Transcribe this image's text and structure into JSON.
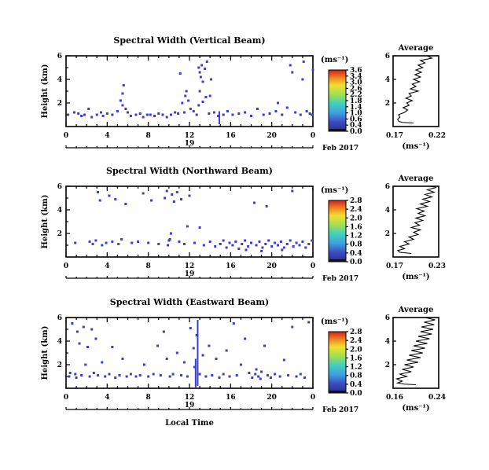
{
  "chart_data": [
    {
      "type": "heatmap",
      "title": "Spectral Width (Vertical Beam)",
      "ylabel": "Height (km)",
      "yticks": [
        "6",
        "4",
        "2"
      ],
      "ylim": [
        0,
        6
      ],
      "xticks": [
        "0",
        "4",
        "8",
        "12",
        "16",
        "20",
        "0"
      ],
      "xlim": [
        0,
        24
      ],
      "date_label": "19",
      "month_label": "Feb 2017",
      "colorbar": {
        "unit": "(ms⁻¹)",
        "ticks": [
          "3.6",
          "3.4",
          "3.0",
          "2.6",
          "2.2",
          "1.8",
          "1.4",
          "1.0",
          "0.6",
          "0.4",
          "0.0"
        ]
      },
      "average": {
        "title": "Average",
        "xlabel": "(ms⁻¹)",
        "xticks": [
          "0.17",
          "0.22"
        ],
        "yticks": [
          "6",
          "4",
          "2"
        ]
      },
      "points": [
        [
          0.2,
          1.0
        ],
        [
          0.8,
          1.2
        ],
        [
          1.2,
          1.1
        ],
        [
          1.5,
          0.9
        ],
        [
          1.8,
          1.0
        ],
        [
          2.2,
          1.5
        ],
        [
          2.5,
          0.8
        ],
        [
          3.0,
          1.0
        ],
        [
          3.4,
          1.2
        ],
        [
          3.6,
          0.9
        ],
        [
          4.0,
          1.1
        ],
        [
          4.5,
          1.0
        ],
        [
          5.0,
          1.3
        ],
        [
          5.3,
          2.2
        ],
        [
          5.5,
          1.8
        ],
        [
          5.6,
          3.5
        ],
        [
          5.8,
          1.5
        ],
        [
          6.0,
          1.2
        ],
        [
          6.3,
          0.9
        ],
        [
          6.8,
          1.0
        ],
        [
          7.2,
          1.1
        ],
        [
          7.5,
          0.8
        ],
        [
          7.9,
          1.0
        ],
        [
          8.2,
          1.0
        ],
        [
          8.6,
          0.9
        ],
        [
          9.0,
          1.1
        ],
        [
          9.4,
          1.0
        ],
        [
          9.8,
          0.8
        ],
        [
          10.2,
          1.0
        ],
        [
          10.6,
          1.2
        ],
        [
          10.9,
          1.1
        ],
        [
          11.1,
          4.5
        ],
        [
          11.3,
          2.0
        ],
        [
          11.5,
          1.2
        ],
        [
          11.7,
          3.0
        ],
        [
          11.9,
          2.2
        ],
        [
          12.1,
          1.5
        ],
        [
          12.4,
          1.3
        ],
        [
          12.7,
          1.0
        ],
        [
          12.9,
          5.0
        ],
        [
          13.0,
          4.6
        ],
        [
          13.1,
          4.2
        ],
        [
          13.2,
          5.2
        ],
        [
          13.3,
          3.8
        ],
        [
          13.5,
          4.9
        ],
        [
          13.6,
          2.5
        ],
        [
          13.7,
          5.5
        ],
        [
          13.9,
          1.1
        ],
        [
          14.1,
          4.0
        ],
        [
          14.4,
          1.2
        ],
        [
          14.8,
          0.9
        ],
        [
          15.3,
          1.0
        ],
        [
          15.7,
          1.3
        ],
        [
          16.2,
          1.0
        ],
        [
          16.8,
          1.1
        ],
        [
          17.4,
          1.2
        ],
        [
          18.0,
          0.9
        ],
        [
          18.6,
          1.5
        ],
        [
          19.2,
          1.0
        ],
        [
          19.8,
          1.1
        ],
        [
          20.4,
          1.3
        ],
        [
          20.6,
          2.0
        ],
        [
          21.0,
          1.0
        ],
        [
          21.5,
          1.6
        ],
        [
          21.8,
          5.2
        ],
        [
          22.0,
          4.6
        ],
        [
          22.3,
          1.2
        ],
        [
          22.8,
          1.0
        ],
        [
          23.0,
          4.0
        ],
        [
          23.1,
          5.5
        ],
        [
          23.4,
          1.3
        ],
        [
          23.7,
          1.1
        ],
        [
          23.9,
          1.0
        ],
        [
          24.0,
          4.8
        ],
        [
          13.0,
          3.0
        ],
        [
          11.6,
          2.6
        ],
        [
          5.5,
          2.8
        ],
        [
          12.9,
          1.8
        ],
        [
          13.3,
          2.1
        ],
        [
          14.0,
          2.6
        ]
      ],
      "stripes": [
        [
          14.9,
          0.2,
          1.3
        ]
      ],
      "profile": [
        [
          0.45,
          0.3
        ],
        [
          0.2,
          0.35
        ],
        [
          0.12,
          0.45
        ],
        [
          0.1,
          0.6
        ],
        [
          0.15,
          0.8
        ],
        [
          0.12,
          1.0
        ],
        [
          0.25,
          1.2
        ],
        [
          0.32,
          1.4
        ],
        [
          0.22,
          1.6
        ],
        [
          0.35,
          1.8
        ],
        [
          0.3,
          2.0
        ],
        [
          0.42,
          2.2
        ],
        [
          0.28,
          2.4
        ],
        [
          0.4,
          2.6
        ],
        [
          0.35,
          2.8
        ],
        [
          0.55,
          3.0
        ],
        [
          0.38,
          3.2
        ],
        [
          0.5,
          3.4
        ],
        [
          0.42,
          3.6
        ],
        [
          0.58,
          3.8
        ],
        [
          0.45,
          4.0
        ],
        [
          0.6,
          4.2
        ],
        [
          0.48,
          4.4
        ],
        [
          0.62,
          4.6
        ],
        [
          0.5,
          4.8
        ],
        [
          0.65,
          5.0
        ],
        [
          0.55,
          5.2
        ],
        [
          0.7,
          5.4
        ],
        [
          0.6,
          5.6
        ],
        [
          0.85,
          5.8
        ],
        [
          0.75,
          6.0
        ]
      ]
    },
    {
      "type": "heatmap",
      "title": "Spectral Width (Northward Beam)",
      "ylabel": "Height (km)",
      "yticks": [
        "6",
        "4",
        "2"
      ],
      "ylim": [
        0,
        6
      ],
      "xticks": [
        "0",
        "4",
        "8",
        "12",
        "16",
        "20",
        "0"
      ],
      "xlim": [
        0,
        24
      ],
      "date_label": "19",
      "month_label": "Feb 2017",
      "colorbar": {
        "unit": "(ms⁻¹)",
        "ticks": [
          "2.8",
          "2.4",
          "2.0",
          "1.6",
          "1.2",
          "0.8",
          "0.4",
          "0.0"
        ]
      },
      "average": {
        "title": "Average",
        "xlabel": "(ms⁻¹)",
        "xticks": [
          "0.17",
          "0.23"
        ],
        "yticks": [
          "6",
          "4",
          "2"
        ]
      },
      "points": [
        [
          0.9,
          1.2
        ],
        [
          2.3,
          1.3
        ],
        [
          2.6,
          1.1
        ],
        [
          2.9,
          1.4
        ],
        [
          3.1,
          5.5
        ],
        [
          3.3,
          4.8
        ],
        [
          3.5,
          1.0
        ],
        [
          3.9,
          1.2
        ],
        [
          4.2,
          5.2
        ],
        [
          4.5,
          1.3
        ],
        [
          4.8,
          4.9
        ],
        [
          5.1,
          1.1
        ],
        [
          5.4,
          1.5
        ],
        [
          5.8,
          4.5
        ],
        [
          6.4,
          1.2
        ],
        [
          7.0,
          1.3
        ],
        [
          7.5,
          5.4
        ],
        [
          8.0,
          1.2
        ],
        [
          8.3,
          4.8
        ],
        [
          9.0,
          1.1
        ],
        [
          9.6,
          5.0
        ],
        [
          9.8,
          5.6
        ],
        [
          10.0,
          1.4
        ],
        [
          10.2,
          2.0
        ],
        [
          10.3,
          5.3
        ],
        [
          10.5,
          4.7
        ],
        [
          10.8,
          5.5
        ],
        [
          11.0,
          1.3
        ],
        [
          11.2,
          4.9
        ],
        [
          11.5,
          1.1
        ],
        [
          11.8,
          2.6
        ],
        [
          12.0,
          5.2
        ],
        [
          12.5,
          1.2
        ],
        [
          13.0,
          2.5
        ],
        [
          13.4,
          1.0
        ],
        [
          14.0,
          1.3
        ],
        [
          14.5,
          0.9
        ],
        [
          15.0,
          1.1
        ],
        [
          15.3,
          1.4
        ],
        [
          15.6,
          0.8
        ],
        [
          15.9,
          1.2
        ],
        [
          16.2,
          1.0
        ],
        [
          16.5,
          1.3
        ],
        [
          16.8,
          0.7
        ],
        [
          17.1,
          1.1
        ],
        [
          17.4,
          1.4
        ],
        [
          17.7,
          0.9
        ],
        [
          18.0,
          1.2
        ],
        [
          18.3,
          4.6
        ],
        [
          18.5,
          1.0
        ],
        [
          18.8,
          1.3
        ],
        [
          19.1,
          0.8
        ],
        [
          19.4,
          1.1
        ],
        [
          19.7,
          1.4
        ],
        [
          20.0,
          0.9
        ],
        [
          20.3,
          1.2
        ],
        [
          20.6,
          1.0
        ],
        [
          20.9,
          1.3
        ],
        [
          21.2,
          0.8
        ],
        [
          21.5,
          1.1
        ],
        [
          21.8,
          1.4
        ],
        [
          22.1,
          0.9
        ],
        [
          22.4,
          1.2
        ],
        [
          22.7,
          1.0
        ],
        [
          23.0,
          1.3
        ],
        [
          23.3,
          0.8
        ],
        [
          23.6,
          1.1
        ],
        [
          23.9,
          1.4
        ],
        [
          19.5,
          4.3
        ],
        [
          22.0,
          5.6
        ],
        [
          10.1,
          1.5
        ],
        [
          9.9,
          1.0
        ],
        [
          17.5,
          0.6
        ],
        [
          19.0,
          0.5
        ],
        [
          21.0,
          0.6
        ]
      ],
      "stripes": [],
      "profile": [
        [
          0.4,
          0.3
        ],
        [
          0.15,
          0.4
        ],
        [
          0.1,
          0.55
        ],
        [
          0.25,
          0.7
        ],
        [
          0.15,
          0.9
        ],
        [
          0.35,
          1.1
        ],
        [
          0.25,
          1.3
        ],
        [
          0.45,
          1.5
        ],
        [
          0.35,
          1.7
        ],
        [
          0.55,
          1.9
        ],
        [
          0.45,
          2.1
        ],
        [
          0.6,
          2.3
        ],
        [
          0.4,
          2.5
        ],
        [
          0.58,
          2.7
        ],
        [
          0.48,
          2.9
        ],
        [
          0.65,
          3.1
        ],
        [
          0.5,
          3.3
        ],
        [
          0.7,
          3.5
        ],
        [
          0.55,
          3.7
        ],
        [
          0.68,
          3.9
        ],
        [
          0.52,
          4.1
        ],
        [
          0.75,
          4.3
        ],
        [
          0.6,
          4.5
        ],
        [
          0.8,
          4.7
        ],
        [
          0.65,
          4.9
        ],
        [
          0.85,
          5.1
        ],
        [
          0.7,
          5.3
        ],
        [
          0.9,
          5.5
        ],
        [
          0.75,
          5.7
        ],
        [
          0.95,
          5.9
        ],
        [
          0.8,
          6.0
        ]
      ]
    },
    {
      "type": "heatmap",
      "title": "Spectral Width (Eastward Beam)",
      "ylabel": "Height (km)",
      "yticks": [
        "6",
        "4",
        "2"
      ],
      "ylim": [
        0,
        6
      ],
      "xticks": [
        "0",
        "4",
        "8",
        "12",
        "16",
        "20",
        "0"
      ],
      "xlim": [
        0,
        24
      ],
      "date_label": "19",
      "month_label": "Feb 2017",
      "xlabel": "Local Time",
      "colorbar": {
        "unit": "(ms⁻¹)",
        "ticks": [
          "2.8",
          "2.4",
          "2.0",
          "1.6",
          "1.2",
          "0.8",
          "0.4",
          "0.0"
        ]
      },
      "average": {
        "title": "Average",
        "xlabel": "(ms⁻¹)",
        "xticks": [
          "0.16",
          "0.24"
        ],
        "yticks": [
          "6",
          "4",
          "2"
        ]
      },
      "points": [
        [
          0.3,
          1.0
        ],
        [
          0.6,
          5.5
        ],
        [
          0.9,
          1.2
        ],
        [
          1.1,
          4.8
        ],
        [
          1.3,
          3.8
        ],
        [
          1.5,
          1.1
        ],
        [
          1.7,
          5.2
        ],
        [
          1.9,
          2.0
        ],
        [
          2.1,
          3.5
        ],
        [
          2.3,
          1.0
        ],
        [
          2.5,
          5.0
        ],
        [
          2.7,
          1.3
        ],
        [
          2.9,
          4.2
        ],
        [
          3.1,
          1.1
        ],
        [
          3.5,
          2.2
        ],
        [
          3.8,
          1.0
        ],
        [
          4.2,
          1.2
        ],
        [
          4.5,
          3.5
        ],
        [
          4.8,
          0.9
        ],
        [
          5.2,
          1.1
        ],
        [
          5.5,
          2.5
        ],
        [
          5.9,
          1.0
        ],
        [
          6.3,
          1.2
        ],
        [
          6.8,
          1.0
        ],
        [
          7.2,
          1.1
        ],
        [
          7.6,
          2.0
        ],
        [
          8.0,
          1.0
        ],
        [
          8.5,
          1.2
        ],
        [
          8.9,
          3.6
        ],
        [
          9.2,
          1.1
        ],
        [
          9.5,
          4.8
        ],
        [
          9.8,
          2.5
        ],
        [
          10.1,
          1.0
        ],
        [
          10.4,
          1.2
        ],
        [
          10.8,
          3.0
        ],
        [
          11.2,
          1.1
        ],
        [
          11.5,
          2.2
        ],
        [
          11.8,
          1.0
        ],
        [
          12.1,
          5.1
        ],
        [
          12.4,
          3.4
        ],
        [
          12.7,
          4.5
        ],
        [
          13.0,
          1.2
        ],
        [
          13.3,
          2.8
        ],
        [
          13.6,
          1.0
        ],
        [
          13.9,
          3.6
        ],
        [
          14.2,
          1.1
        ],
        [
          14.6,
          2.5
        ],
        [
          14.9,
          0.9
        ],
        [
          15.3,
          1.2
        ],
        [
          15.6,
          3.2
        ],
        [
          15.9,
          1.0
        ],
        [
          16.3,
          5.5
        ],
        [
          16.6,
          1.1
        ],
        [
          17.0,
          2.0
        ],
        [
          17.4,
          4.2
        ],
        [
          17.8,
          1.3
        ],
        [
          18.1,
          0.9
        ],
        [
          18.4,
          1.2
        ],
        [
          18.7,
          1.0
        ],
        [
          19.0,
          1.4
        ],
        [
          19.3,
          3.6
        ],
        [
          19.6,
          1.1
        ],
        [
          19.9,
          0.9
        ],
        [
          20.3,
          1.2
        ],
        [
          20.8,
          1.0
        ],
        [
          21.2,
          2.4
        ],
        [
          21.6,
          1.1
        ],
        [
          22.0,
          5.2
        ],
        [
          22.4,
          1.0
        ],
        [
          22.8,
          1.2
        ],
        [
          23.2,
          0.9
        ],
        [
          23.6,
          5.6
        ],
        [
          18.5,
          1.6
        ],
        [
          18.9,
          0.8
        ],
        [
          12.5,
          1.8
        ],
        [
          0.4,
          1.3
        ],
        [
          1.0,
          0.9
        ]
      ],
      "stripes": [
        [
          12.6,
          0.0,
          2.5
        ],
        [
          12.8,
          0.2,
          5.8
        ]
      ],
      "profile": [
        [
          0.5,
          0.3
        ],
        [
          0.25,
          0.35
        ],
        [
          0.1,
          0.45
        ],
        [
          0.2,
          0.6
        ],
        [
          0.08,
          0.8
        ],
        [
          0.3,
          1.0
        ],
        [
          0.15,
          1.2
        ],
        [
          0.4,
          1.4
        ],
        [
          0.2,
          1.6
        ],
        [
          0.45,
          1.8
        ],
        [
          0.25,
          2.0
        ],
        [
          0.55,
          2.2
        ],
        [
          0.3,
          2.4
        ],
        [
          0.6,
          2.6
        ],
        [
          0.35,
          2.8
        ],
        [
          0.65,
          3.0
        ],
        [
          0.4,
          3.2
        ],
        [
          0.7,
          3.4
        ],
        [
          0.45,
          3.6
        ],
        [
          0.75,
          3.8
        ],
        [
          0.5,
          4.0
        ],
        [
          0.8,
          4.2
        ],
        [
          0.55,
          4.4
        ],
        [
          0.85,
          4.6
        ],
        [
          0.6,
          4.8
        ],
        [
          0.88,
          5.0
        ],
        [
          0.62,
          5.2
        ],
        [
          0.9,
          5.4
        ],
        [
          0.68,
          5.6
        ],
        [
          0.92,
          5.8
        ],
        [
          0.7,
          6.0
        ]
      ]
    }
  ]
}
